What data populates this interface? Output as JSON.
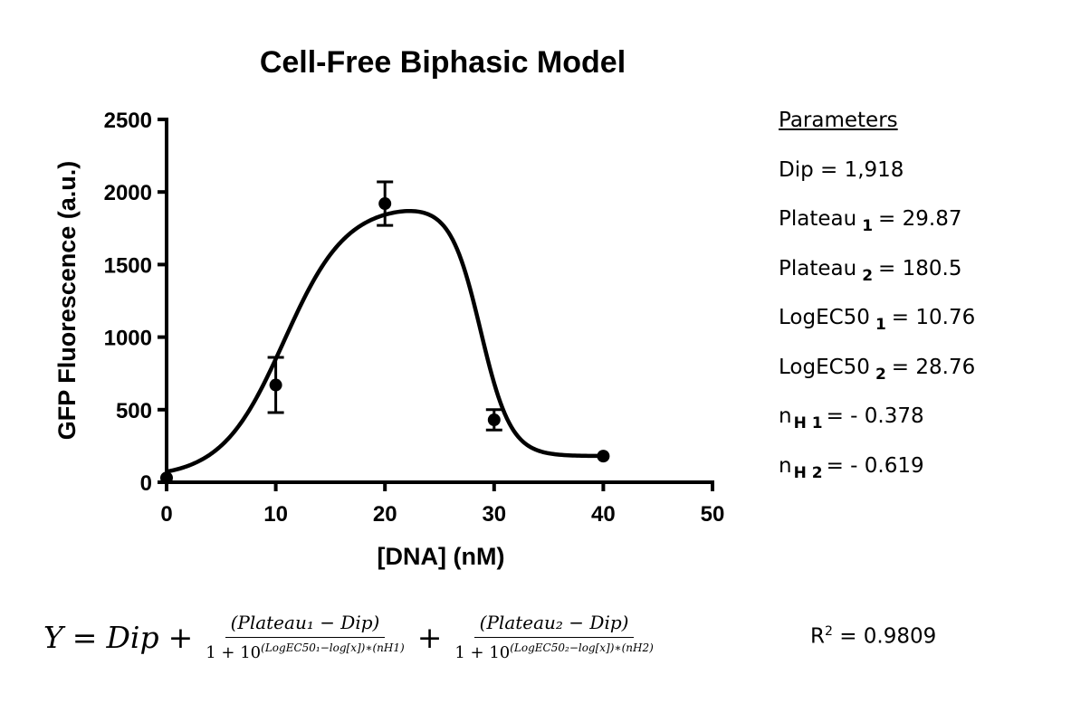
{
  "chart_data": {
    "type": "line",
    "title": "Cell-Free Biphasic Model",
    "xlabel": "[DNA] (nM)",
    "ylabel": "GFP Fluorescence (a.u.)",
    "xlim": [
      0,
      50
    ],
    "ylim": [
      0,
      2500
    ],
    "x_ticks": [
      "0",
      "10",
      "20",
      "30",
      "40",
      "50"
    ],
    "y_ticks": [
      "0",
      "500",
      "1000",
      "1500",
      "2000",
      "2500"
    ],
    "grid": false,
    "series": [
      {
        "kind": "points",
        "x": [
          0,
          10,
          20,
          30,
          40
        ],
        "y": [
          30,
          670,
          1920,
          430,
          180
        ],
        "error": [
          0,
          190,
          150,
          70,
          0
        ]
      },
      {
        "kind": "fit",
        "model": "biphasic",
        "dip": 1918,
        "plateau1": 29.87,
        "plateau2": 180.5,
        "logec50_1": 10.76,
        "logec50_2": 28.76,
        "nh1": -0.378,
        "nh2": -0.619
      }
    ]
  },
  "parameters": {
    "header": "Parameters",
    "dip": "Dip = 1,918",
    "plateau1_name": "Plateau",
    "plateau1_sub": "1",
    "plateau1_value": "= 29.87",
    "plateau2_name": "Plateau",
    "plateau2_sub": "2",
    "plateau2_value": "= 180.5",
    "logec1_name": "LogEC50",
    "logec1_sub": "1",
    "logec1_value": "= 10.76",
    "logec2_name": "LogEC50",
    "logec2_sub": "2",
    "logec2_value": "= 28.76",
    "nh1_name": "n",
    "nh1_sub": "H 1",
    "nh1_value": "= - 0.378",
    "nh2_name": "n",
    "nh2_sub": "H 2",
    "nh2_value": "= - 0.619"
  },
  "equation": {
    "lhs": "Y",
    "equals": "=",
    "dip": "Dip",
    "plus": "+",
    "num1": "(Plateau₁ − Dip)",
    "den1_base": "1 + 10",
    "den1_exp": "(LogEC50₁−log[x])∗(nH1)",
    "num2": "(Plateau₂ − Dip)",
    "den2_base": "1 + 10",
    "den2_exp": "(LogEC50₂−log[x])∗(nH2)"
  },
  "r2": {
    "label": "R",
    "sup": "2",
    "value": "= 0.9809"
  }
}
